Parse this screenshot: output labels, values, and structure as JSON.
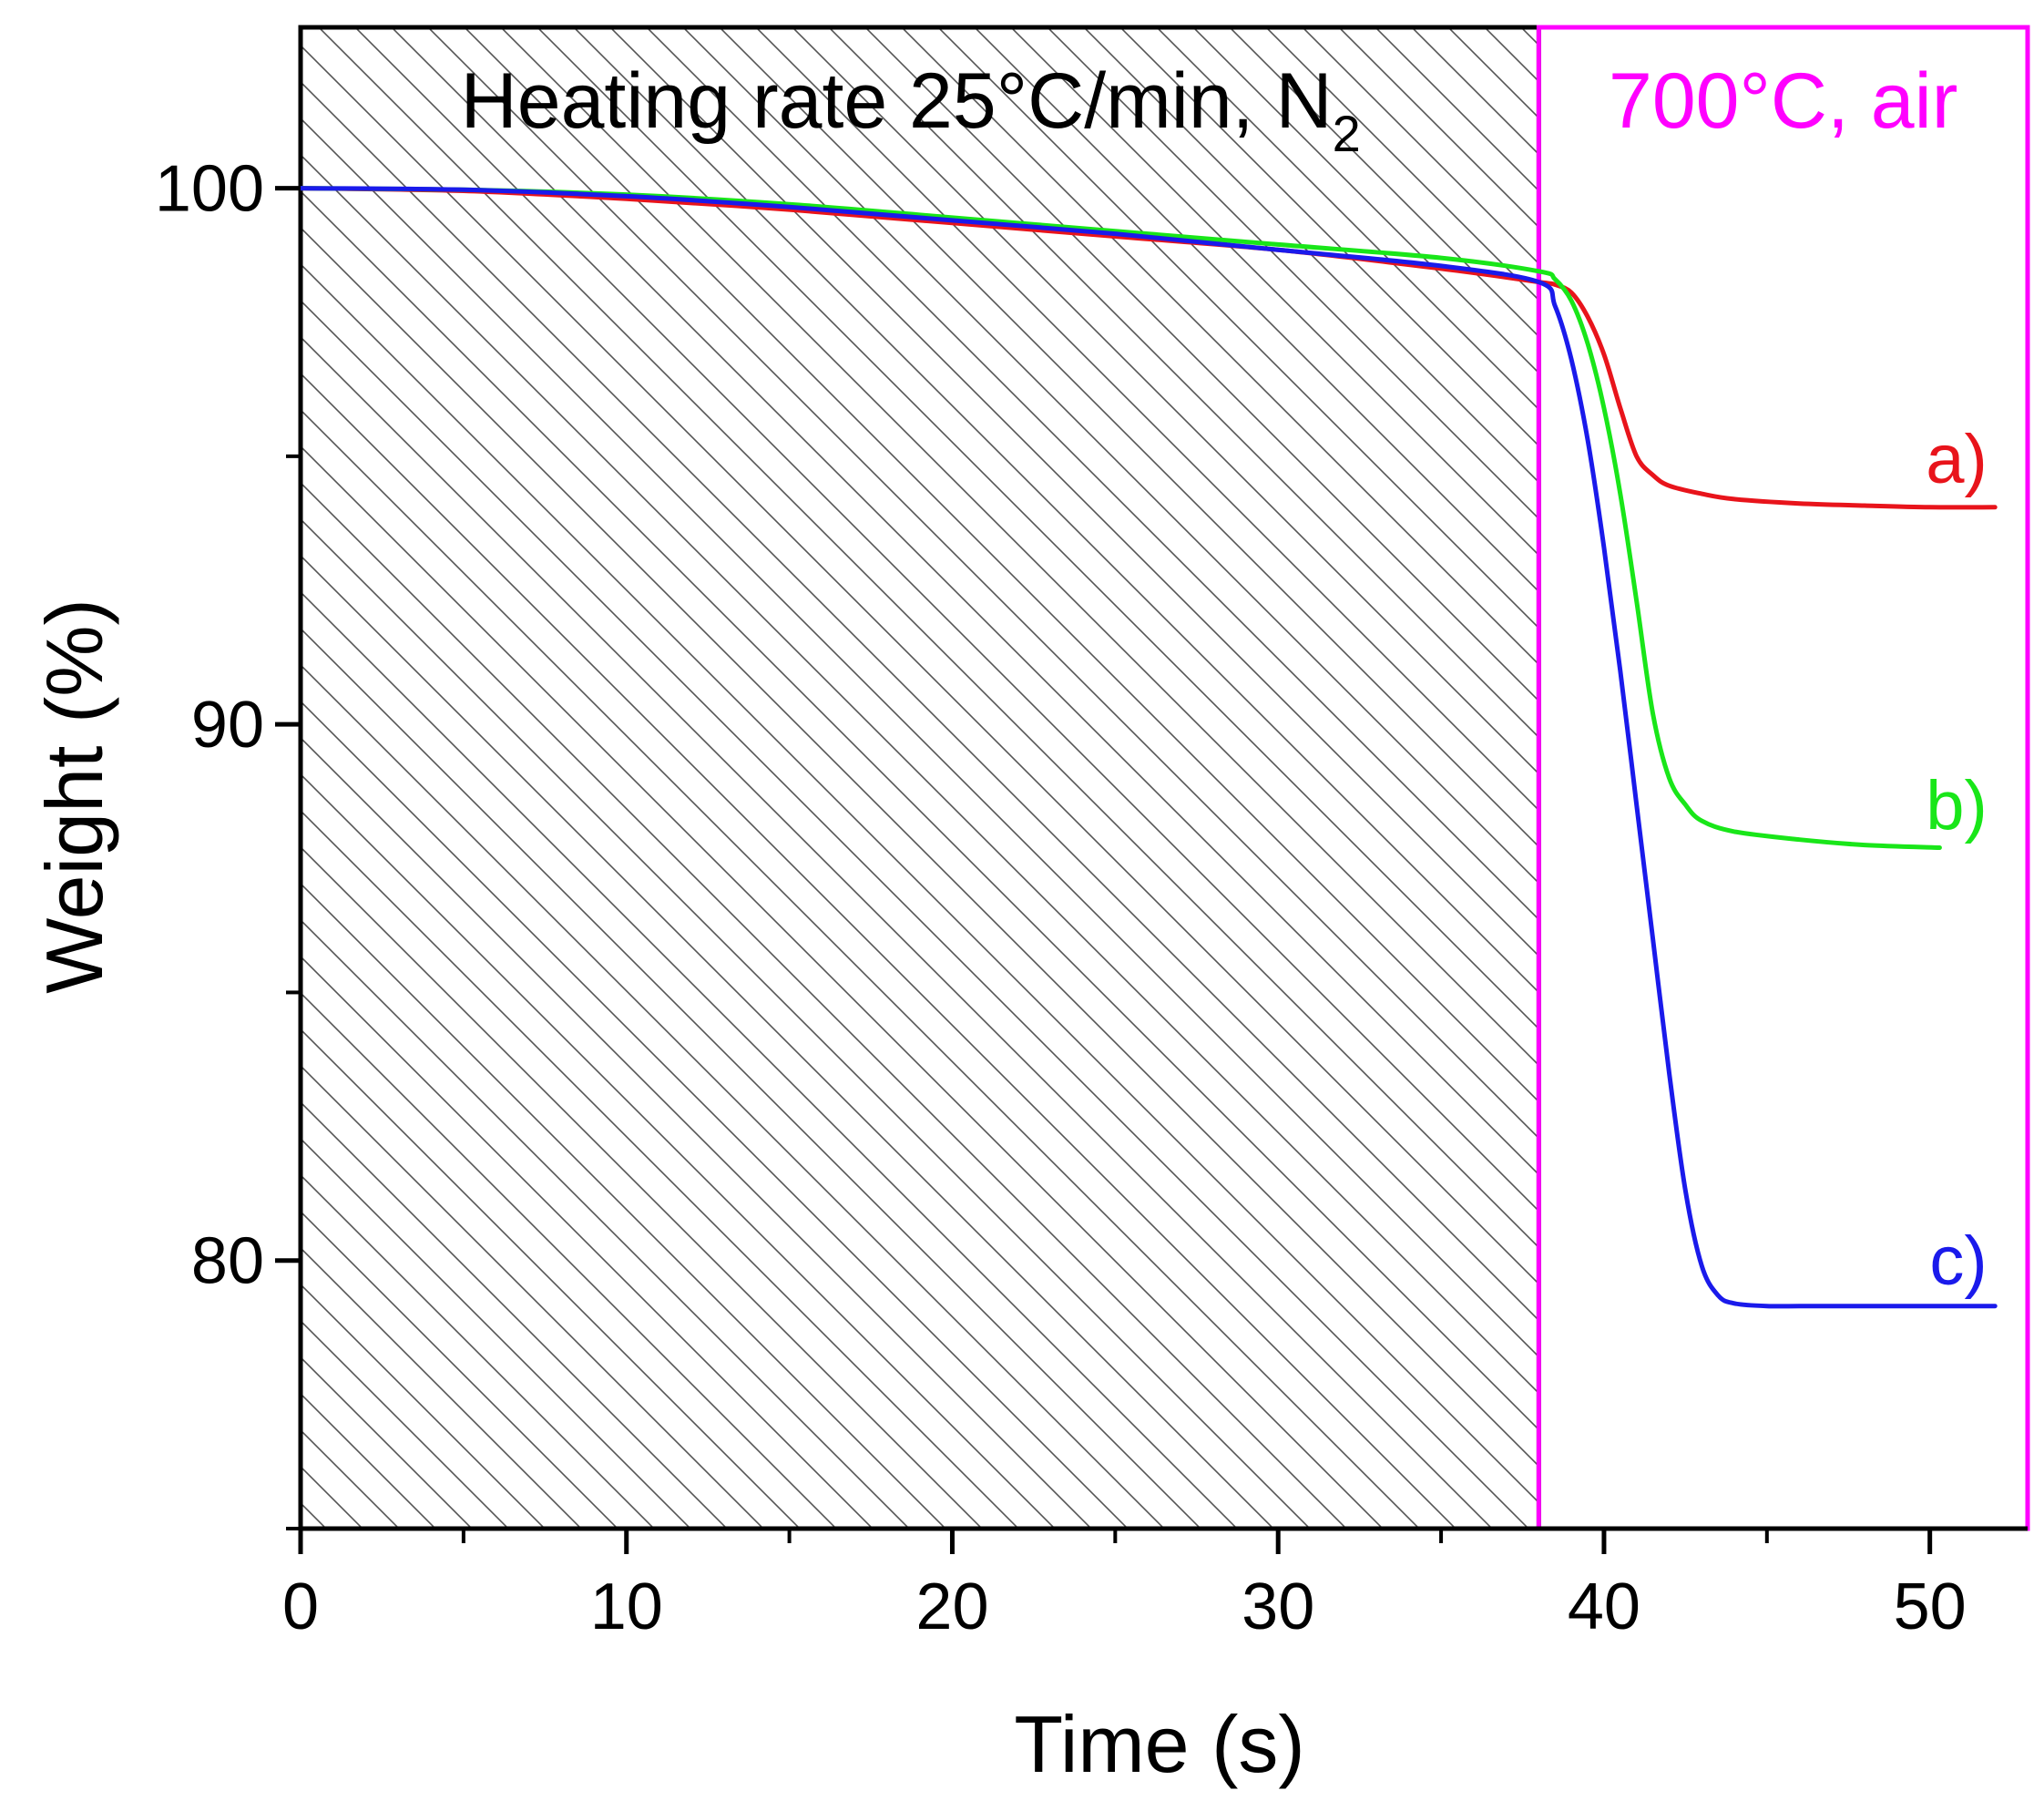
{
  "chart_data": {
    "type": "line",
    "xlabel": "Time (s)",
    "ylabel": "Weight (%)",
    "xlim": [
      0,
      53
    ],
    "ylim": [
      75,
      103
    ],
    "x_ticks": [
      0,
      10,
      20,
      30,
      40,
      50
    ],
    "x_tick_labels": [
      "0",
      "10",
      "20",
      "30",
      "40",
      "50"
    ],
    "x_minor_ticks": [
      5,
      15,
      25,
      35,
      45
    ],
    "y_ticks": [
      80,
      90,
      100
    ],
    "y_tick_labels": [
      "80",
      "90",
      "100"
    ],
    "y_minor_ticks": [
      75,
      85,
      95
    ],
    "grid": false,
    "regions": [
      {
        "name": "heating",
        "label": "Heating rate 25°C/min, N",
        "label_subscript": "2",
        "x_range": [
          0,
          38
        ],
        "fill": "hatched",
        "color": "#000000"
      },
      {
        "name": "isothermal",
        "label": "700°C, air",
        "x_range": [
          38,
          53
        ],
        "fill": "none",
        "color": "#ff00ff"
      }
    ],
    "series": [
      {
        "name": "a)",
        "color": "#e8141b",
        "x": [
          0,
          5,
          10,
          15,
          20,
          25,
          30,
          35,
          38,
          38.5,
          39,
          39.5,
          40,
          40.5,
          41,
          41.5,
          42,
          43,
          44,
          46,
          48,
          50,
          52
        ],
        "y": [
          100.0,
          99.95,
          99.8,
          99.6,
          99.35,
          99.1,
          98.85,
          98.5,
          98.25,
          98.2,
          98.05,
          97.6,
          96.9,
          95.9,
          95.0,
          94.65,
          94.45,
          94.3,
          94.2,
          94.12,
          94.08,
          94.05,
          94.05
        ]
      },
      {
        "name": "b)",
        "color": "#19e619",
        "x": [
          0,
          5,
          10,
          15,
          20,
          25,
          30,
          35,
          38,
          38.5,
          39,
          39.5,
          40,
          40.5,
          41,
          41.5,
          42,
          42.5,
          43,
          44,
          46,
          48,
          50.3
        ],
        "y": [
          100.0,
          99.97,
          99.88,
          99.7,
          99.45,
          99.2,
          98.95,
          98.7,
          98.45,
          98.3,
          97.9,
          97.1,
          95.9,
          94.3,
          92.3,
          90.2,
          89.0,
          88.5,
          88.2,
          88.0,
          87.85,
          87.75,
          87.7
        ]
      },
      {
        "name": "c)",
        "color": "#1a1aeb",
        "x": [
          0,
          5,
          10,
          15,
          20,
          25,
          30,
          35,
          38,
          38.5,
          39,
          39.5,
          40,
          40.5,
          41,
          41.5,
          42,
          42.5,
          43,
          43.5,
          44,
          45,
          46,
          48,
          52
        ],
        "y": [
          100.0,
          99.97,
          99.85,
          99.65,
          99.4,
          99.15,
          98.85,
          98.55,
          98.25,
          97.8,
          96.8,
          95.3,
          93.3,
          91.0,
          88.5,
          86.0,
          83.5,
          81.3,
          79.9,
          79.35,
          79.2,
          79.15,
          79.15,
          79.15,
          79.15
        ]
      }
    ]
  }
}
